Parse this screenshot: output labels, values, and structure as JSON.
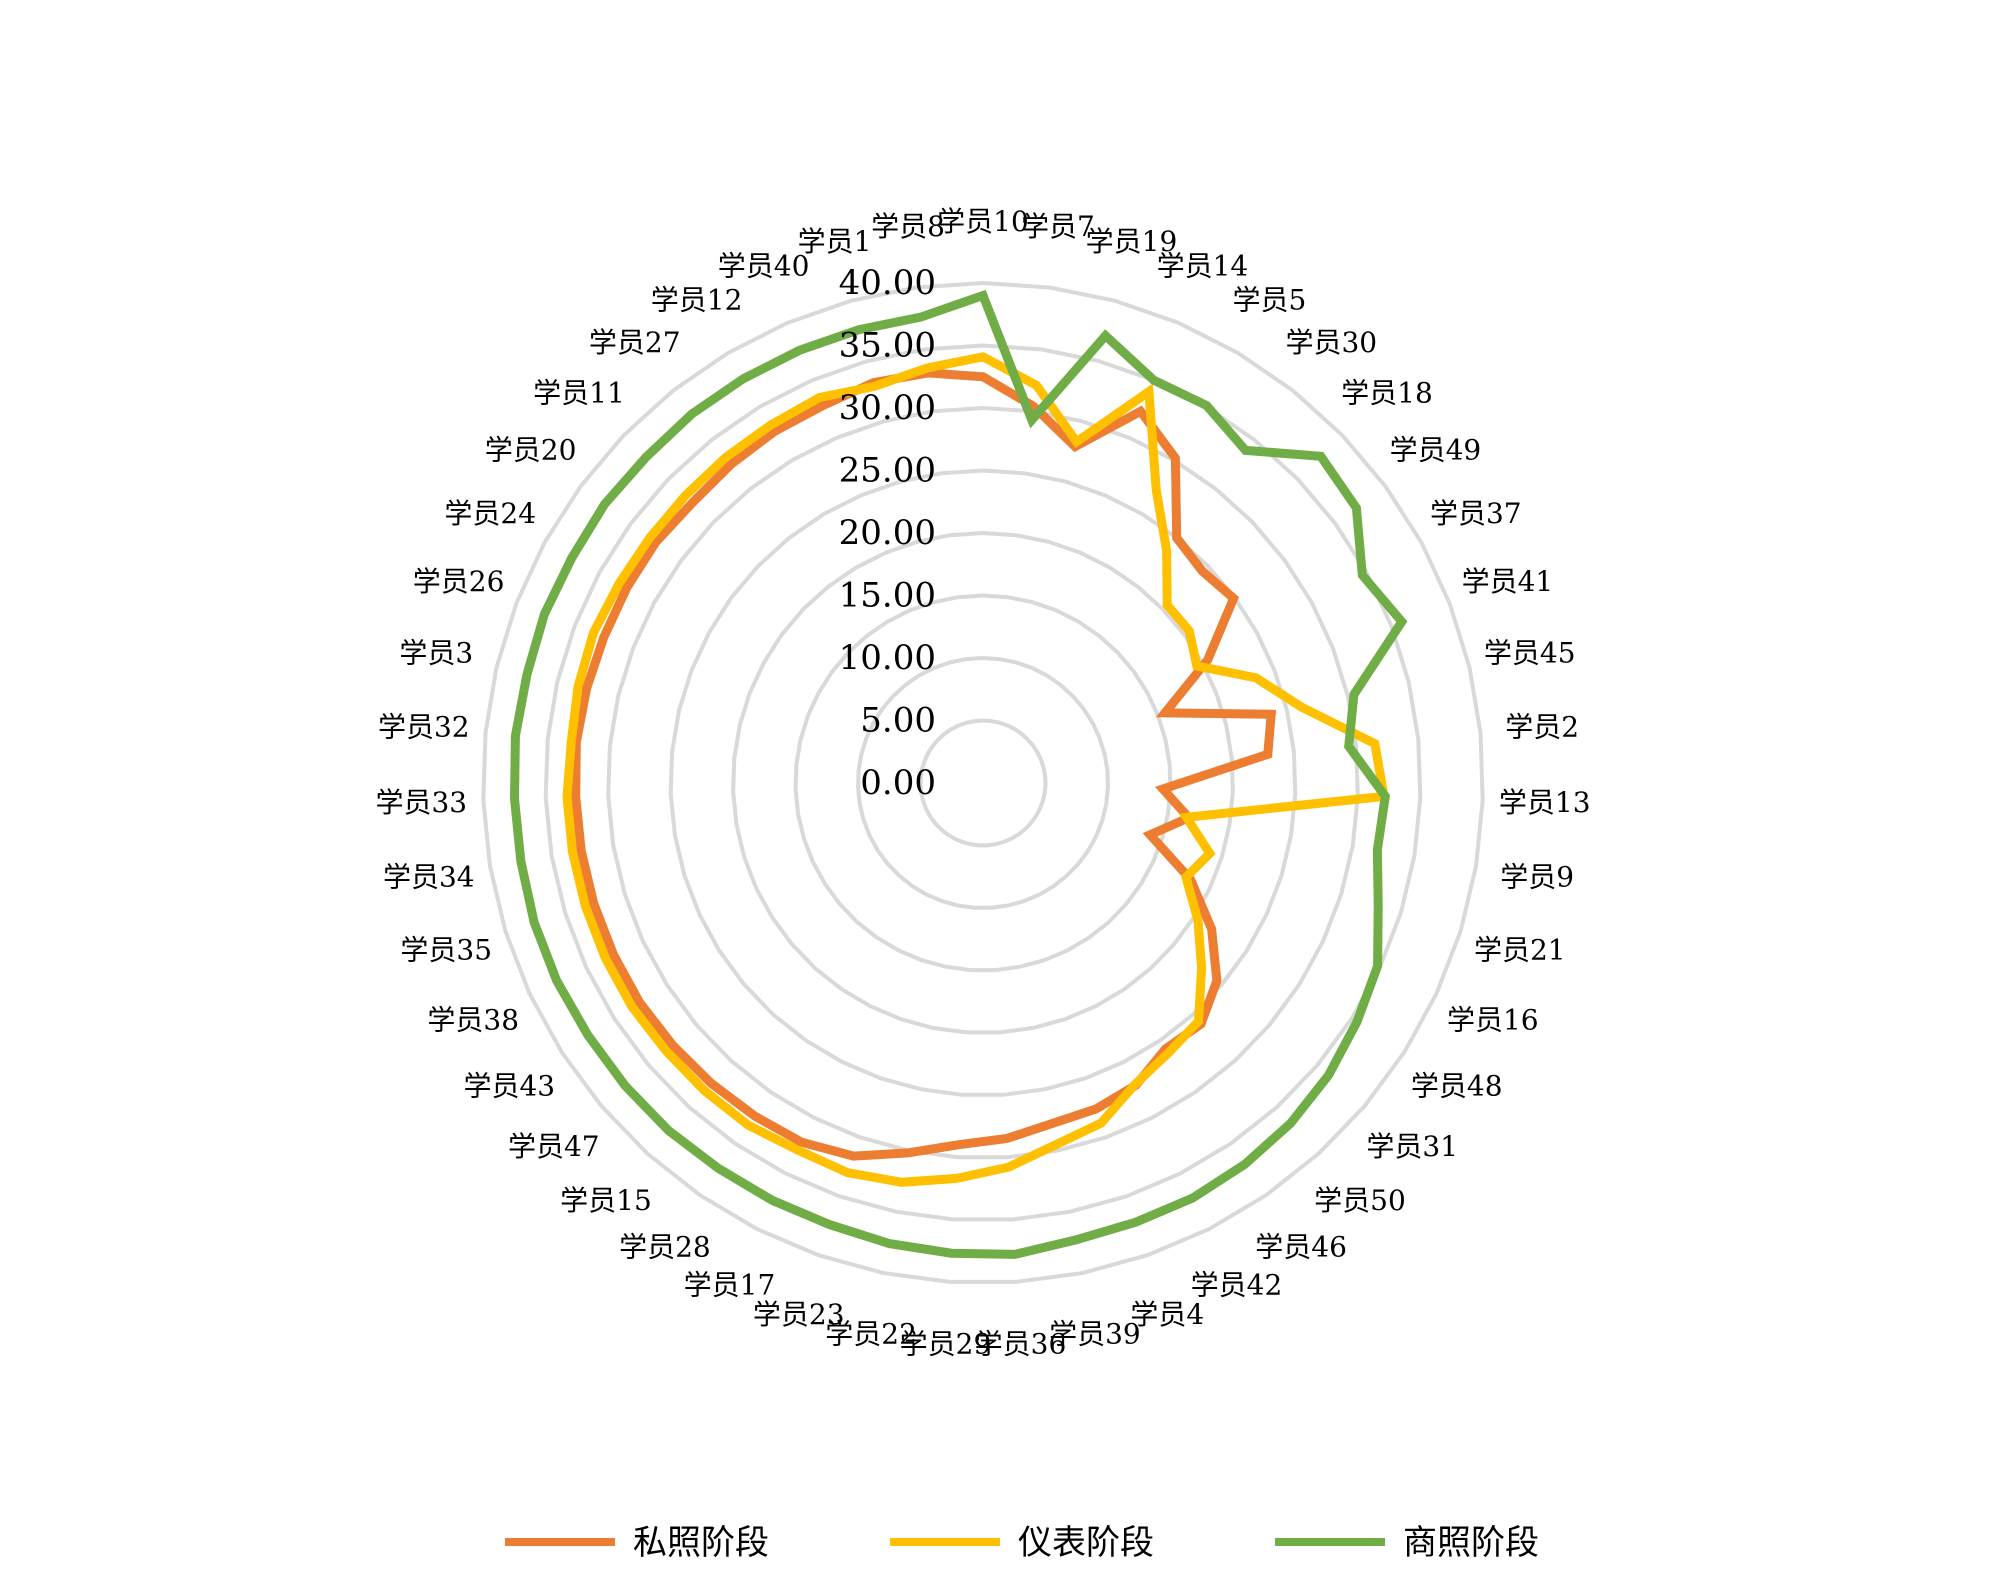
{
  "chart_data": {
    "type": "radar",
    "title": "",
    "categories": [
      "学员10",
      "学员7",
      "学员19",
      "学员14",
      "学员5",
      "学员30",
      "学员18",
      "学员49",
      "学员37",
      "学员41",
      "学员45",
      "学员2",
      "学员13",
      "学员9",
      "学员21",
      "学员16",
      "学员48",
      "学员31",
      "学员50",
      "学员46",
      "学员42",
      "学员4",
      "学员39",
      "学员36",
      "学员29",
      "学员22",
      "学员23",
      "学员17",
      "学员28",
      "学员15",
      "学员47",
      "学员43",
      "学员38",
      "学员35",
      "学员34",
      "学员33",
      "学员32",
      "学员3",
      "学员26",
      "学员24",
      "学员20",
      "学员11",
      "学员27",
      "学员12",
      "学员40",
      "学员1",
      "学员8"
    ],
    "rlim": [
      0,
      40
    ],
    "tick_values": [
      0,
      5,
      10,
      15,
      20,
      25,
      30,
      35,
      40
    ],
    "tick_labels": [
      "0.00",
      "5.00",
      "10.00",
      "15.00",
      "20.00",
      "25.00",
      "30.00",
      "35.00",
      "40.00"
    ],
    "grid": true,
    "legend_position": "bottom",
    "series": [
      {
        "name": "私照阶段",
        "color": "#ED7D31",
        "values": [
          32.5,
          30.4,
          27.9,
          32.3,
          30.2,
          25.0,
          24.4,
          24.9,
          20.5,
          15.6,
          23.7,
          22.9,
          14.4,
          16.7,
          14.0,
          18.3,
          21.7,
          24.5,
          26.0,
          25.8,
          27.1,
          27.6,
          27.8,
          28.5,
          29.0,
          30.2,
          31.6,
          32.2,
          32.3,
          32.4,
          32.5,
          32.6,
          32.6,
          32.6,
          32.6,
          32.6,
          32.7,
          32.6,
          32.5,
          32.5,
          32.5,
          32.3,
          32.5,
          32.7,
          32.8,
          33.2,
          33.1
        ]
      },
      {
        "name": "仪表阶段",
        "color": "#FFC000",
        "values": [
          34.1,
          32.1,
          28.3,
          34.0,
          27.2,
          23.7,
          20.5,
          20.5,
          19.5,
          23.4,
          26.2,
          31.5,
          32.1,
          16.5,
          19.0,
          17.9,
          20.4,
          22.9,
          25.7,
          26.2,
          27.0,
          28.8,
          29.5,
          30.8,
          31.7,
          32.6,
          33.0,
          32.9,
          33.2,
          33.2,
          33.2,
          33.3,
          33.3,
          33.3,
          33.3,
          33.3,
          33.1,
          33.3,
          33.4,
          33.2,
          33.1,
          33.1,
          33.2,
          33.3,
          33.5,
          32.9,
          33.5
        ]
      },
      {
        "name": "商照阶段",
        "color": "#70AD47",
        "values": [
          39.0,
          29.3,
          37.1,
          35.0,
          35.1,
          33.9,
          37.6,
          37.1,
          34.6,
          35.9,
          30.5,
          29.4,
          32.2,
          32.0,
          33.1,
          34.8,
          35.5,
          36.2,
          36.7,
          37.0,
          37.2,
          37.2,
          37.3,
          37.8,
          37.7,
          37.6,
          37.4,
          37.4,
          37.4,
          37.5,
          37.5,
          37.5,
          37.6,
          37.6,
          37.5,
          37.5,
          37.6,
          37.5,
          37.6,
          37.5,
          37.6,
          37.5,
          37.6,
          37.6,
          37.6,
          37.6,
          37.6
        ]
      }
    ]
  }
}
